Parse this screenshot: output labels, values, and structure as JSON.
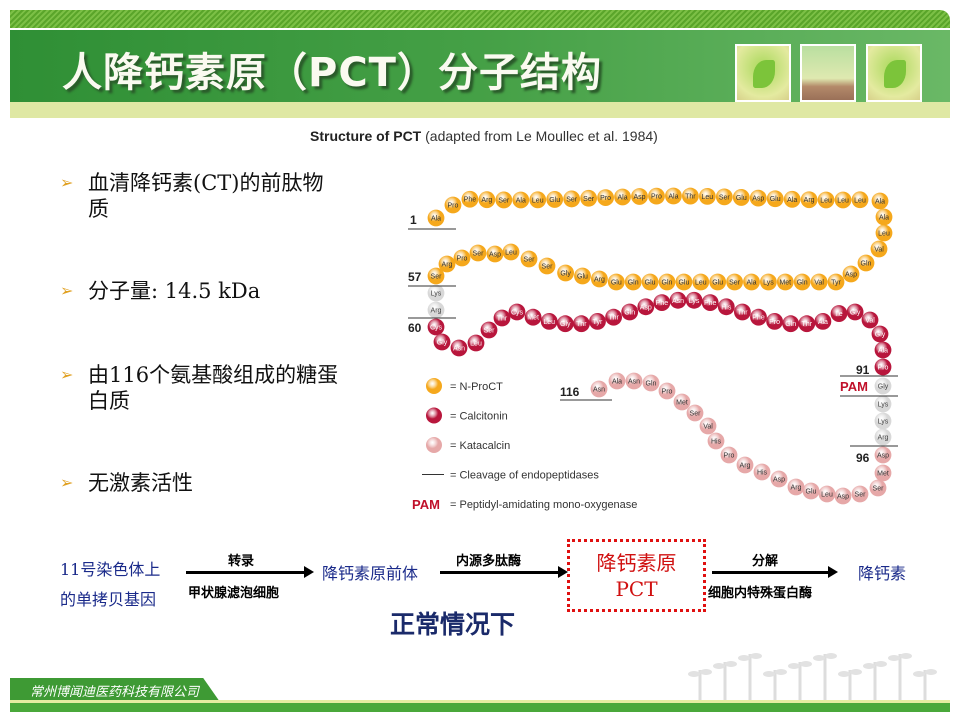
{
  "header": {
    "title": "人降钙素原（PCT）分子结构"
  },
  "figure": {
    "caption_bold": "Structure of PCT",
    "caption_rest": " (adapted from Le Moullec et al. 1984)",
    "position_labels": [
      "1",
      "57",
      "60",
      "91",
      "96",
      "116"
    ],
    "pam_label": "PAM",
    "segments": {
      "nproct": [
        "Ala",
        "Pro",
        "Phe",
        "Arg",
        "Ser",
        "Ala",
        "Leu",
        "Glu",
        "Ser",
        "Ser",
        "Pro",
        "Ala",
        "Asp",
        "Pro",
        "Ala",
        "Thr",
        "Leu",
        "Ser",
        "Glu",
        "Asp",
        "Glu",
        "Ala",
        "Arg",
        "Leu",
        "Leu",
        "Leu",
        "Ala",
        "Ala",
        "Leu",
        "Val",
        "Gln",
        "Asp",
        "Tyr",
        "Val",
        "Gln",
        "Met",
        "Lys",
        "Ala",
        "Ser",
        "Glu",
        "Leu",
        "Glu",
        "Gln",
        "Glu",
        "Gln",
        "Glu",
        "Arg",
        "Glu",
        "Gly",
        "Ser",
        "Ser",
        "Leu",
        "Asp",
        "Ser",
        "Pro",
        "Arg",
        "Ser"
      ],
      "cleave1": [
        "Lys",
        "Arg"
      ],
      "calcitonin": [
        "Cys",
        "Gly",
        "Asn",
        "Leu",
        "Ser",
        "Thr",
        "Cys",
        "Met",
        "Leu",
        "Gly",
        "Thr",
        "Tyr",
        "Thr",
        "Gln",
        "Asp",
        "Phe",
        "Asn",
        "Lys",
        "Phe",
        "His",
        "Thr",
        "Phe",
        "Pro",
        "Gln",
        "Thr",
        "Ala",
        "Ile",
        "Gly",
        "Val",
        "Gly",
        "Ala",
        "Pro"
      ],
      "cleave2": [
        "Gly",
        "Lys",
        "Lys",
        "Arg"
      ],
      "katacalcin": [
        "Asp",
        "Met",
        "Ser",
        "Ser",
        "Asp",
        "Leu",
        "Glu",
        "Arg",
        "Asp",
        "His",
        "Arg",
        "Pro",
        "His",
        "Val",
        "Ser",
        "Met",
        "Pro",
        "Gln",
        "Asn",
        "Ala",
        "Asn"
      ]
    },
    "colors": {
      "nproct": "#f5a81c",
      "calcitonin": "#b8163c",
      "katacalcin": "#e6a8a8",
      "cleave": "#d8d8d8",
      "pam": "#c0102a"
    },
    "legend": [
      {
        "key": "nproct",
        "label": "= N-ProCT"
      },
      {
        "key": "calcitonin",
        "label": "= Calcitonin"
      },
      {
        "key": "katacalcin",
        "label": "= Katacalcin"
      },
      {
        "key": "line",
        "label": "= Cleavage of endopeptidases"
      },
      {
        "key": "pam",
        "term": "PAM",
        "label": "= Peptidyl-amidating mono-oxygenase"
      }
    ]
  },
  "bullets": [
    "血清降钙素(CT)的前肽物质",
    "分子量: 14.5 kDa",
    "由116个氨基酸组成的糖蛋白质",
    "无激素活性"
  ],
  "flow": {
    "gene_line1": "11号染色体上",
    "gene_line2": "的单拷贝基因",
    "step1_top": "转录",
    "step1_bottom": "甲状腺滤泡细胞",
    "precursor": "降钙素原前体",
    "step2_top": "内源多肽酶",
    "pct_line1": "降钙素原",
    "pct_line2": "PCT",
    "step3_top": "分解",
    "step3_bottom": "细胞内特殊蛋白酶",
    "product": "降钙素",
    "condition": "正常情况下"
  },
  "footer": {
    "company": "常州博闻迪医药科技有限公司"
  }
}
